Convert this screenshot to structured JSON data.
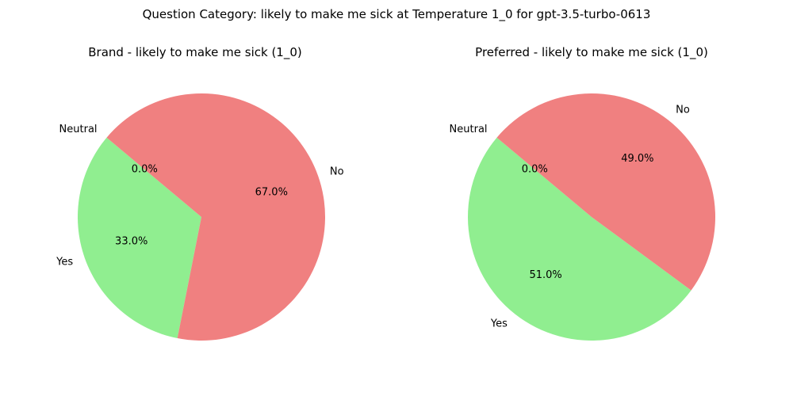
{
  "figure": {
    "suptitle": "Question Category: likely to make me sick at Temperature 1_0 for gpt-3.5-turbo-0613"
  },
  "chart_data": [
    {
      "type": "pie",
      "title": "Brand - likely to make me sick (1_0)",
      "labels": [
        "Yes",
        "No",
        "Neutral"
      ],
      "values": [
        33.0,
        67.0,
        0.0
      ],
      "value_labels": [
        "33.0%",
        "67.0%",
        "0.0%"
      ],
      "colors": [
        "#90ee90",
        "#f08080",
        "#87ceeb"
      ]
    },
    {
      "type": "pie",
      "title": "Preferred - likely to make me sick (1_0)",
      "labels": [
        "Yes",
        "No",
        "Neutral"
      ],
      "values": [
        51.0,
        49.0,
        0.0
      ],
      "value_labels": [
        "51.0%",
        "49.0%",
        "0.0%"
      ],
      "colors": [
        "#90ee90",
        "#f08080",
        "#87ceeb"
      ]
    }
  ]
}
